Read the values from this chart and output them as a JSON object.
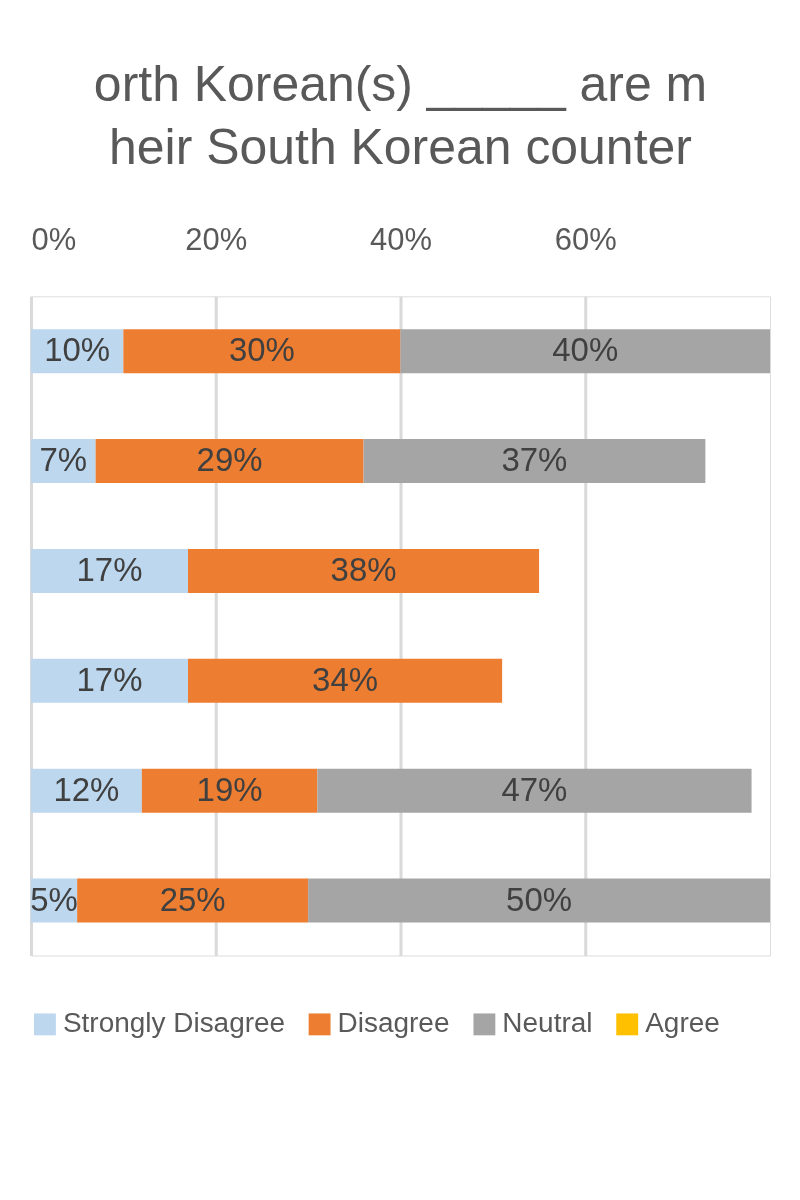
{
  "chart_data": {
    "type": "bar",
    "orientation": "horizontal",
    "stacked": true,
    "title": "orth Korean(s) _____ are m\nheir South Korean counter",
    "categories": [
      null,
      null,
      null,
      null,
      null,
      null
    ],
    "series": [
      {
        "name": "Strongly Disagree",
        "color": "#bdd7ee",
        "values": [
          10,
          7,
          17,
          17,
          12,
          5
        ],
        "value_labels": [
          "10%",
          "7%",
          "17%",
          "17%",
          "12%",
          "5%"
        ]
      },
      {
        "name": "Disagree",
        "color": "#ed7d31",
        "values": [
          30,
          29,
          38,
          34,
          19,
          25
        ],
        "value_labels": [
          "30%",
          "29%",
          "38%",
          "34%",
          "19%",
          "25%"
        ]
      },
      {
        "name": "Neutral",
        "color": "#a5a5a5",
        "values": [
          40,
          37,
          null,
          null,
          47,
          50
        ],
        "value_labels": [
          "40%",
          "37%",
          null,
          null,
          "47%",
          "50%"
        ]
      },
      {
        "name": "Agree",
        "color": "#ffc000",
        "values": [
          null,
          null,
          null,
          null,
          null,
          null
        ]
      }
    ],
    "xlim": [
      0,
      80
    ],
    "xticks": [
      {
        "value": 0,
        "label": "0%"
      },
      {
        "value": 20,
        "label": "20%"
      },
      {
        "value": 40,
        "label": "40%"
      },
      {
        "value": 60,
        "label": "60%"
      }
    ],
    "grid": "x",
    "legend": "bottom",
    "tick_labels": "x"
  }
}
